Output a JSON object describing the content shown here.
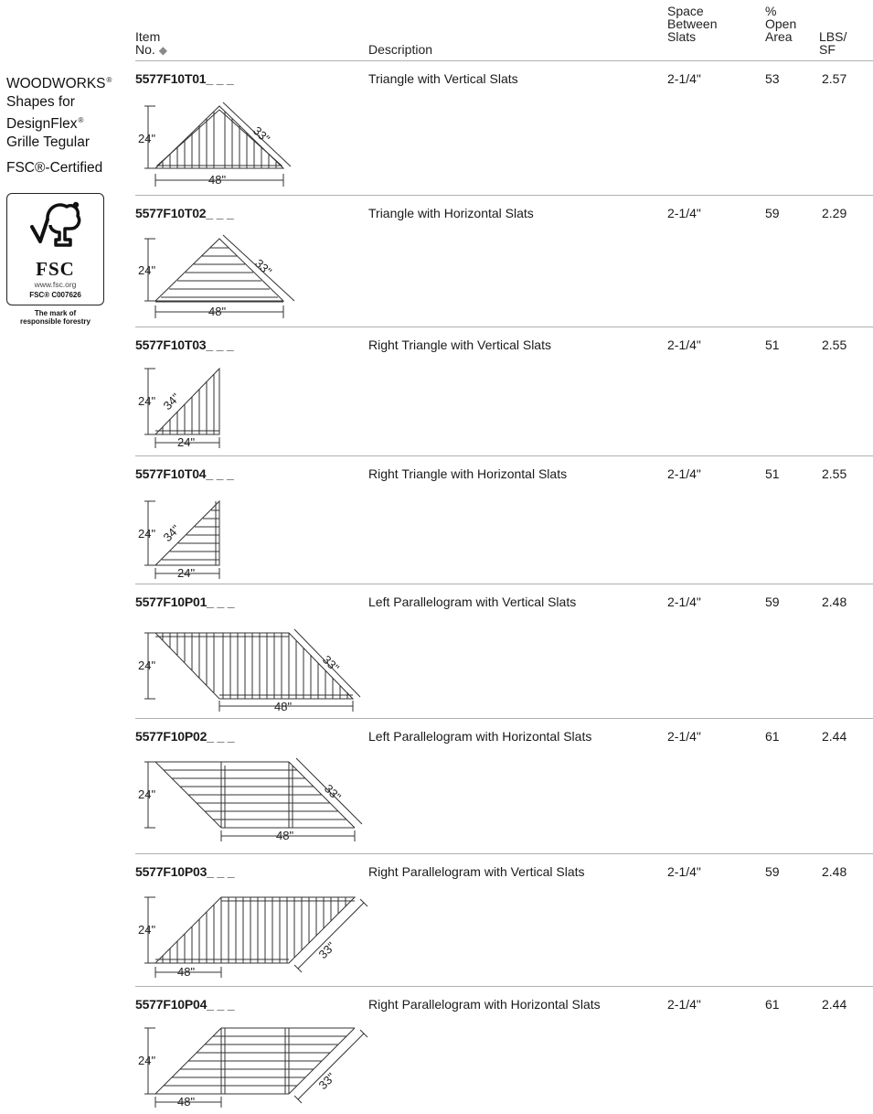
{
  "header": {
    "item_no": [
      "Item",
      "No."
    ],
    "item_mark": "◆",
    "description": "Description",
    "space": [
      "Space",
      "Between",
      "Slats"
    ],
    "open": [
      "%",
      "Open",
      "Area"
    ],
    "lbs": [
      "LBS/",
      "SF"
    ]
  },
  "sidebar": {
    "title_lines": [
      "WOODWORKS",
      "Shapes for",
      "DesignFlex",
      "Grille Tegular"
    ],
    "registered_mark": "®",
    "certified": "FSC®-Certified",
    "logo": {
      "icon": "fsc-tree-check-icon",
      "word": "FSC",
      "url": "www.fsc.org",
      "code": "FSC® C007626",
      "tagline": [
        "The mark of",
        "responsible forestry"
      ]
    }
  },
  "rows": [
    {
      "item": "5577F10T01_ _ _",
      "description": "Triangle with Vertical Slats",
      "space": "2-1/4\"",
      "open": "53",
      "lbs": "2.57",
      "dims": {
        "height": "24\"",
        "width": "48\"",
        "side": "33\""
      }
    },
    {
      "item": "5577F10T02_ _ _",
      "description": "Triangle with Horizontal Slats",
      "space": "2-1/4\"",
      "open": "59",
      "lbs": "2.29",
      "dims": {
        "height": "24\"",
        "width": "48\"",
        "side": "33\""
      }
    },
    {
      "item": "5577F10T03_ _ _",
      "description": "Right Triangle with Vertical Slats",
      "space": "2-1/4\"",
      "open": "51",
      "lbs": "2.55",
      "dims": {
        "height": "24\"",
        "width": "24\"",
        "side": "34\""
      }
    },
    {
      "item": "5577F10T04_ _ _",
      "description": "Right Triangle with Horizontal Slats",
      "space": "2-1/4\"",
      "open": "51",
      "lbs": "2.55",
      "dims": {
        "height": "24\"",
        "width": "24\"",
        "side": "34\""
      }
    },
    {
      "item": "5577F10P01_ _ _",
      "description": "Left Parallelogram with Vertical Slats",
      "space": "2-1/4\"",
      "open": "59",
      "lbs": "2.48",
      "dims": {
        "height": "24\"",
        "width": "48\"",
        "side": "33\""
      }
    },
    {
      "item": "5577F10P02_ _ _",
      "description": "Left Parallelogram with Horizontal Slats",
      "space": "2-1/4\"",
      "open": "61",
      "lbs": "2.44",
      "dims": {
        "height": "24\"",
        "width": "48\"",
        "side": "33\""
      }
    },
    {
      "item": "5577F10P03_ _ _",
      "description": "Right Parallelogram with Vertical Slats",
      "space": "2-1/4\"",
      "open": "59",
      "lbs": "2.48",
      "dims": {
        "height": "24\"",
        "width": "48\"",
        "side": "33\""
      }
    },
    {
      "item": "5577F10P04_ _ _",
      "description": "Right Parallelogram with Horizontal Slats",
      "space": "2-1/4\"",
      "open": "61",
      "lbs": "2.44",
      "dims": {
        "height": "24\"",
        "width": "48\"",
        "side": "33\""
      }
    }
  ]
}
